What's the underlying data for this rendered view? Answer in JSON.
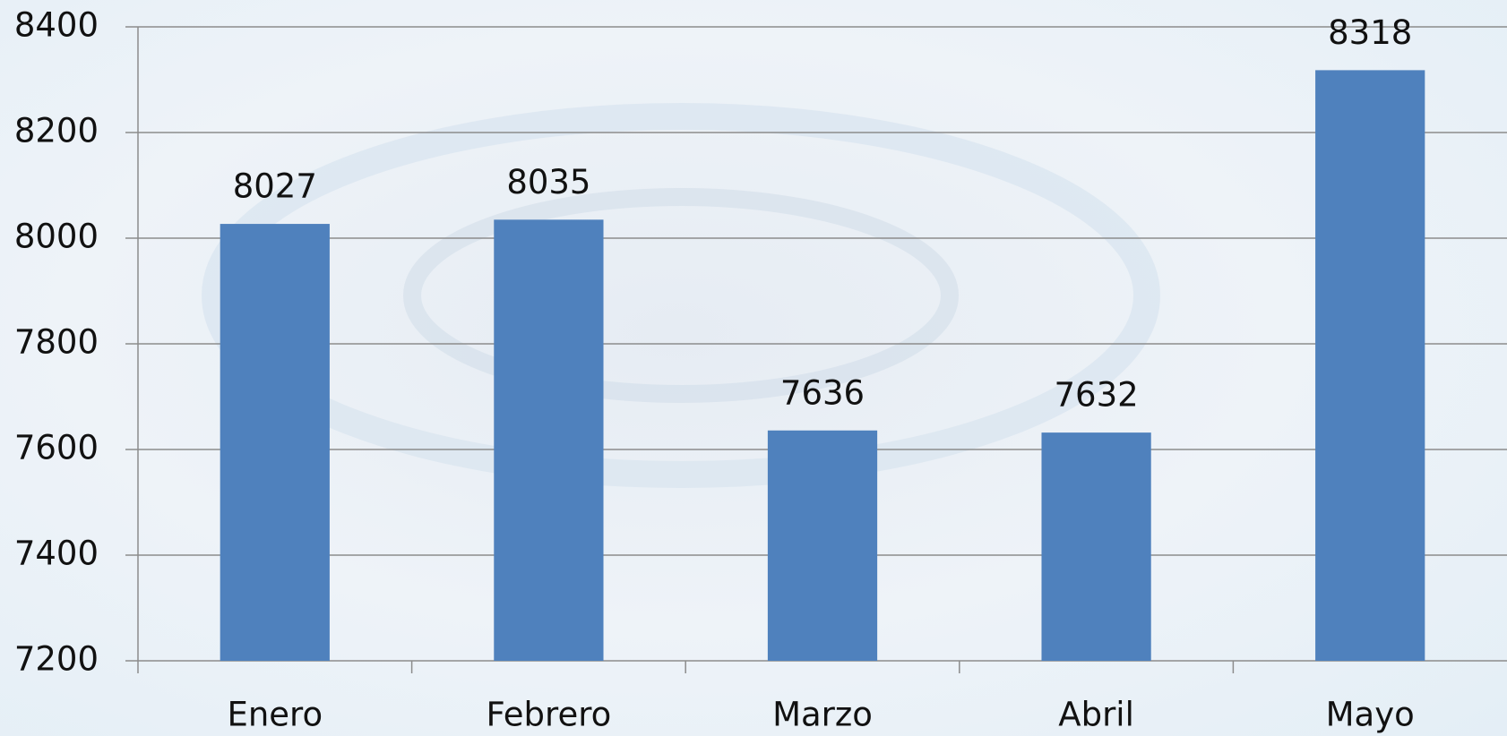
{
  "chart_data": {
    "type": "bar",
    "categories": [
      "Enero",
      "Febrero",
      "Marzo",
      "Abril",
      "Mayo"
    ],
    "values": [
      8027,
      8035,
      7636,
      7632,
      8318
    ],
    "color": "#4f81bd",
    "ylim": [
      7200,
      8400
    ],
    "yticks": [
      7200,
      7400,
      7600,
      7800,
      8000,
      8200,
      8400
    ],
    "grid": true
  }
}
